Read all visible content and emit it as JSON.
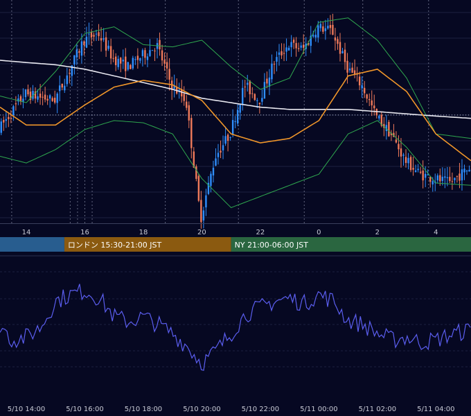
{
  "chart_data": [
    {
      "type": "candlestick",
      "xlabel": "",
      "ylabel": "",
      "x_tick_labels": [
        "14",
        "16",
        "18",
        "20",
        "22",
        "0",
        "2",
        "4"
      ],
      "x_tick_hours": [
        14,
        16,
        18,
        20,
        22,
        24,
        26,
        28
      ],
      "x_range_hours": [
        13.1,
        29.2
      ],
      "y_range": [
        0,
        100
      ],
      "reference_level": 48.5,
      "grid": true,
      "colors": {
        "background": "#060822",
        "grid": "#1c2140",
        "session_line": "#8a8fa8",
        "candle_up": "#2f8fff",
        "candle_down": "#f07a5a",
        "moving_average_long": "#e8e8f0",
        "moving_average_short": "#f0962a",
        "bollinger_band": "#2fa84f"
      },
      "session_markers_hours": [
        13.5,
        15.5,
        15.75,
        16.0,
        16.25,
        18.75,
        21.25,
        23.5,
        25.5,
        27.75
      ],
      "series": [
        {
          "values_by_hour": [
            [
              13.1,
              42
            ],
            [
              14,
              58
            ],
            [
              15,
              55
            ],
            [
              15.5,
              68
            ],
            [
              16,
              82
            ],
            [
              16.5,
              85
            ],
            [
              17,
              74
            ],
            [
              17.5,
              70
            ],
            [
              18,
              75
            ],
            [
              18.5,
              80
            ],
            [
              19,
              62
            ],
            [
              19.5,
              55
            ],
            [
              20,
              2
            ],
            [
              20.5,
              30
            ],
            [
              21,
              40
            ],
            [
              21.5,
              62
            ],
            [
              22,
              55
            ],
            [
              22.5,
              72
            ],
            [
              23,
              80
            ],
            [
              23.5,
              78
            ],
            [
              24,
              88
            ],
            [
              24.5,
              86
            ],
            [
              25,
              70
            ],
            [
              25.5,
              62
            ],
            [
              26,
              48
            ],
            [
              26.5,
              40
            ],
            [
              27,
              28
            ],
            [
              27.5,
              22
            ],
            [
              28,
              20
            ],
            [
              28.5,
              18
            ],
            [
              29.2,
              25
            ]
          ]
        },
        {
          "values_by_hour": [
            [
              13.1,
              73
            ],
            [
              14,
              72
            ],
            [
              15,
              71
            ],
            [
              16,
              69
            ],
            [
              17,
              66
            ],
            [
              18,
              63
            ],
            [
              19,
              60
            ],
            [
              20,
              56
            ],
            [
              21,
              54
            ],
            [
              22,
              52
            ],
            [
              23,
              51
            ],
            [
              24,
              51
            ],
            [
              25,
              51
            ],
            [
              26,
              50
            ],
            [
              27,
              49
            ],
            [
              28,
              48
            ],
            [
              29.2,
              47
            ]
          ]
        },
        {
          "values_by_hour": [
            [
              13.1,
              52
            ],
            [
              14,
              44
            ],
            [
              15,
              44
            ],
            [
              16,
              53
            ],
            [
              17,
              61
            ],
            [
              18,
              64
            ],
            [
              19,
              62
            ],
            [
              20,
              55
            ],
            [
              21,
              40
            ],
            [
              22,
              36
            ],
            [
              23,
              38
            ],
            [
              24,
              46
            ],
            [
              25,
              66
            ],
            [
              26,
              69
            ],
            [
              27,
              59
            ],
            [
              28,
              40
            ],
            [
              29.2,
              28
            ]
          ]
        },
        {
          "values_by_hour": [
            [
              13.1,
              57
            ],
            [
              14,
              54
            ],
            [
              15,
              68
            ],
            [
              16,
              85
            ],
            [
              17,
              88
            ],
            [
              18,
              80
            ],
            [
              19,
              79
            ],
            [
              20,
              82
            ],
            [
              21,
              70
            ],
            [
              22,
              60
            ],
            [
              23,
              65
            ],
            [
              24,
              90
            ],
            [
              25,
              92
            ],
            [
              26,
              82
            ],
            [
              27,
              65
            ],
            [
              28,
              40
            ],
            [
              29.2,
              38
            ]
          ]
        },
        {
          "values_by_hour": [
            [
              13.1,
              30
            ],
            [
              14,
              27
            ],
            [
              15,
              33
            ],
            [
              16,
              42
            ],
            [
              17,
              46
            ],
            [
              18,
              45
            ],
            [
              19,
              40
            ],
            [
              20,
              20
            ],
            [
              21,
              7
            ],
            [
              22,
              12
            ],
            [
              23,
              17
            ],
            [
              24,
              22
            ],
            [
              25,
              40
            ],
            [
              26,
              46
            ],
            [
              27,
              34
            ],
            [
              28,
              18
            ],
            [
              29.2,
              17
            ]
          ]
        }
      ],
      "sessions": [
        {
          "label": "",
          "color": "#285d8f",
          "start_hour": 13.1,
          "end_hour": 15.3
        },
        {
          "label": "ロンドン 15:30-21:00 JST",
          "color": "#8b5a10",
          "start_hour": 15.3,
          "end_hour": 21.0
        },
        {
          "label": "NY 21:00-06:00 JST",
          "color": "#2a6640",
          "start_hour": 21.0,
          "end_hour": 29.2
        }
      ]
    },
    {
      "type": "line",
      "xlabel": "",
      "ylabel": "",
      "x_tick_labels": [
        "5/10 14:00",
        "5/10 16:00",
        "5/10 18:00",
        "5/10 20:00",
        "5/10 22:00",
        "5/11 00:00",
        "5/11 02:00",
        "5/11 04:00"
      ],
      "x_tick_hours": [
        14,
        16,
        18,
        20,
        22,
        24,
        26,
        28
      ],
      "x_range_hours": [
        13.1,
        29.2
      ],
      "y_range": [
        0,
        100
      ],
      "grid": true,
      "color": "#5b5ef0",
      "series": [
        {
          "values_by_hour": [
            [
              13.1,
              52
            ],
            [
              13.5,
              40
            ],
            [
              14,
              42
            ],
            [
              14.5,
              50
            ],
            [
              15,
              70
            ],
            [
              15.5,
              75
            ],
            [
              16,
              78
            ],
            [
              16.5,
              72
            ],
            [
              17,
              58
            ],
            [
              17.5,
              54
            ],
            [
              18,
              58
            ],
            [
              18.5,
              52
            ],
            [
              19,
              45
            ],
            [
              19.5,
              35
            ],
            [
              20,
              22
            ],
            [
              20.5,
              32
            ],
            [
              21,
              45
            ],
            [
              21.5,
              60
            ],
            [
              22,
              65
            ],
            [
              22.5,
              70
            ],
            [
              23,
              72
            ],
            [
              23.5,
              68
            ],
            [
              24,
              75
            ],
            [
              24.5,
              70
            ],
            [
              25,
              55
            ],
            [
              25.5,
              52
            ],
            [
              26,
              45
            ],
            [
              26.5,
              40
            ],
            [
              27,
              42
            ],
            [
              27.5,
              38
            ],
            [
              28,
              40
            ],
            [
              28.5,
              44
            ],
            [
              29.2,
              48
            ]
          ]
        }
      ]
    }
  ]
}
